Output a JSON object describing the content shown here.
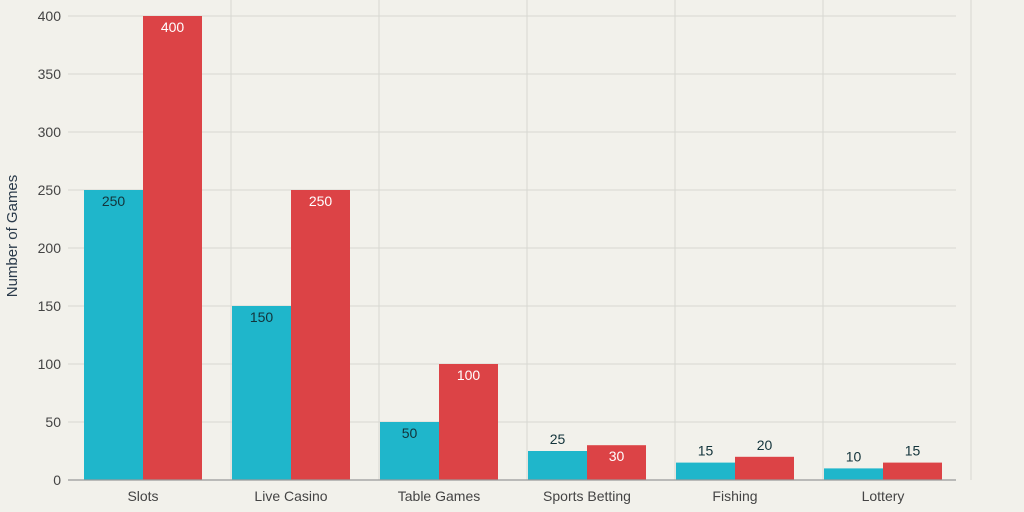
{
  "chart_data": {
    "type": "bar",
    "title": "",
    "xlabel": "",
    "ylabel": "Number of Games",
    "ylim": [
      0,
      400
    ],
    "yticks": [
      0,
      50,
      100,
      150,
      200,
      250,
      300,
      350,
      400
    ],
    "grid": true,
    "legend": "none",
    "categories": [
      "Slots",
      "Live Casino",
      "Table Games",
      "Sports Betting",
      "Fishing",
      "Lottery"
    ],
    "series": [
      {
        "values": [
          250,
          150,
          50,
          25,
          15,
          10
        ],
        "color": "#1fb6cb"
      },
      {
        "values": [
          400,
          250,
          100,
          30,
          20,
          15
        ],
        "color": "#dc4346"
      }
    ],
    "colors": {
      "background": "#f2f1eb",
      "grid": "#d8d8d2",
      "axis": "#999999",
      "label_inside": "#ffffff",
      "label_dark": "#13343b"
    }
  }
}
